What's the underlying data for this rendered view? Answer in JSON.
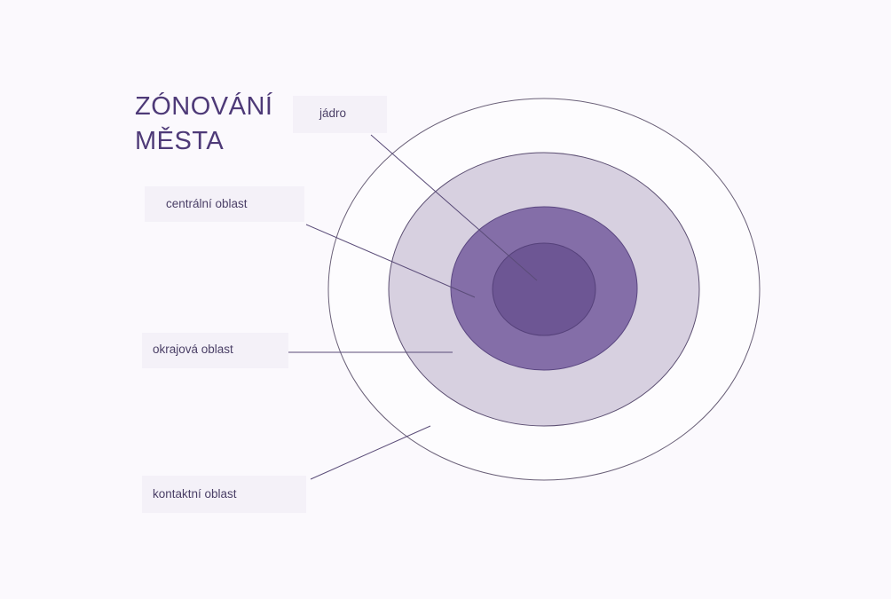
{
  "title": [
    "ZÓNOVÁNÍ",
    "MĚSTA"
  ],
  "zones": [
    {
      "label": "jádro"
    },
    {
      "label": "centrální oblast"
    },
    {
      "label": "okrajová oblast"
    },
    {
      "label": "kontaktní oblast"
    }
  ]
}
